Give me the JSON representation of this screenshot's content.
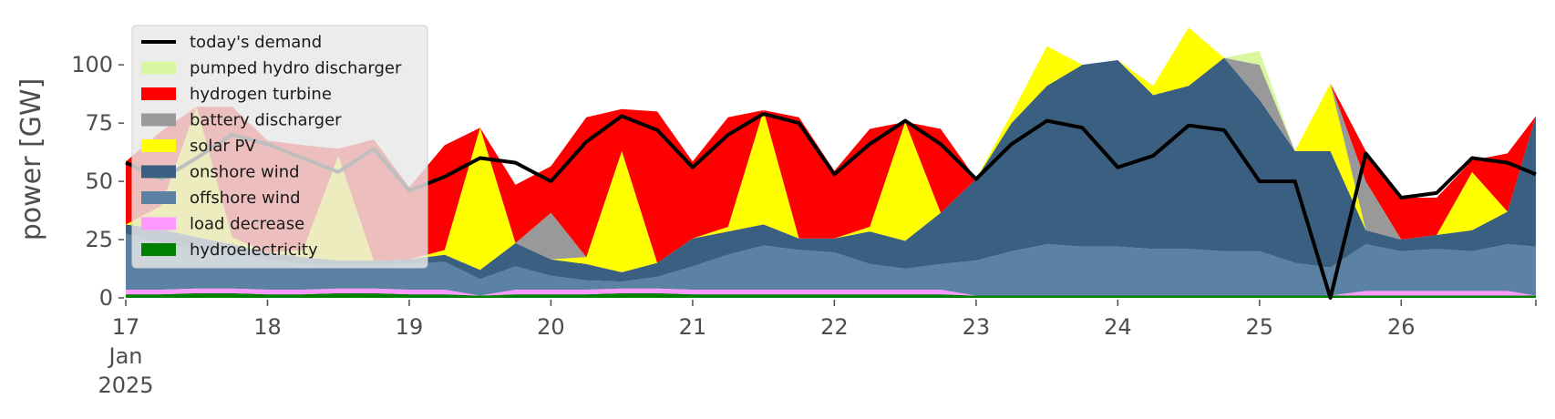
{
  "chart_data": {
    "type": "area",
    "stacked": true,
    "ylabel": "power [GW]",
    "xlabel": "",
    "ylim": [
      0,
      120
    ],
    "yticks": [
      0,
      25,
      50,
      75,
      100
    ],
    "xlim": [
      17,
      26.95
    ],
    "xticks": [
      {
        "value": 17,
        "label": "17",
        "sub": [
          "Jan",
          "2025"
        ]
      },
      {
        "value": 18,
        "label": "18"
      },
      {
        "value": 19,
        "label": "19"
      },
      {
        "value": 20,
        "label": "20"
      },
      {
        "value": 21,
        "label": "21"
      },
      {
        "value": 22,
        "label": "22"
      },
      {
        "value": 23,
        "label": "23"
      },
      {
        "value": 24,
        "label": "24"
      },
      {
        "value": 25,
        "label": "25"
      },
      {
        "value": 26,
        "label": "26"
      }
    ],
    "legend_position": "top-left",
    "grid": false,
    "legend": [
      {
        "name": "today's demand",
        "kind": "line",
        "color": "#000000"
      },
      {
        "name": "pumped hydro discharger",
        "kind": "patch",
        "color": "#d8f7a0"
      },
      {
        "name": "hydrogen turbine",
        "kind": "patch",
        "color": "#ff0000"
      },
      {
        "name": "battery discharger",
        "kind": "patch",
        "color": "#999999"
      },
      {
        "name": "solar PV",
        "kind": "patch",
        "color": "#ffff00"
      },
      {
        "name": "onshore wind",
        "kind": "patch",
        "color": "#3b5f80"
      },
      {
        "name": "offshore wind",
        "kind": "patch",
        "color": "#5b81a3"
      },
      {
        "name": "load decrease",
        "kind": "patch",
        "color": "#ff99ff"
      },
      {
        "name": "hydroelectricity",
        "kind": "patch",
        "color": "#008000"
      }
    ],
    "x": [
      17,
      17.25,
      17.5,
      17.75,
      18,
      18.25,
      18.5,
      18.75,
      19,
      19.25,
      19.5,
      19.75,
      20,
      20.25,
      20.5,
      20.75,
      21,
      21.25,
      21.5,
      21.75,
      22,
      22.25,
      22.5,
      22.75,
      23,
      23.25,
      23.5,
      23.75,
      24,
      24.25,
      24.5,
      24.75,
      25,
      25.25,
      25.5,
      25.75,
      26,
      26.25,
      26.5,
      26.75,
      26.95
    ],
    "series": [
      {
        "name": "hydroelectricity",
        "color": "#008000",
        "values": [
          1.5,
          1.5,
          2,
          2,
          1.5,
          1.5,
          2,
          2,
          1.5,
          1.5,
          1,
          1.5,
          1.5,
          1.5,
          2,
          2,
          1.5,
          1.5,
          1.5,
          1.5,
          1.5,
          1.5,
          1.5,
          1.5,
          1,
          1,
          1,
          1,
          1,
          1,
          1,
          1,
          1,
          1,
          1,
          1,
          1,
          1,
          1,
          1,
          1
        ]
      },
      {
        "name": "load decrease",
        "color": "#ff99ff",
        "values": [
          2,
          2,
          2,
          2,
          2,
          2,
          2,
          2,
          2,
          2,
          0,
          2,
          2,
          2,
          2,
          2,
          2,
          2,
          2,
          2,
          2,
          2,
          2,
          2,
          0,
          0,
          0,
          0,
          0,
          0,
          0,
          0,
          0,
          0,
          0,
          2,
          2,
          2,
          2,
          2,
          0
        ]
      },
      {
        "name": "offshore wind",
        "color": "#5b81a3",
        "values": [
          24,
          20,
          17,
          15,
          13,
          11,
          10,
          10,
          11,
          12,
          7,
          10,
          6,
          4,
          3,
          5,
          10,
          15,
          19,
          17,
          16,
          11,
          9,
          11,
          15,
          19,
          22,
          21,
          21,
          20,
          20,
          19,
          19,
          14,
          12,
          20,
          17,
          18,
          17,
          20,
          21
        ]
      },
      {
        "name": "onshore wind",
        "color": "#3b5f80",
        "values": [
          4,
          6,
          5,
          4,
          3,
          3,
          2,
          2,
          2,
          3,
          4,
          10,
          7,
          7,
          4,
          6,
          12,
          10,
          9,
          5,
          6,
          14,
          12,
          22,
          35,
          55,
          68,
          78,
          80,
          66,
          70,
          83,
          65,
          48,
          50,
          6,
          5,
          6,
          9,
          14,
          56
        ]
      },
      {
        "name": "solar PV",
        "color": "#ffff00",
        "values": [
          0,
          10,
          56,
          3,
          0,
          3,
          45,
          0,
          0,
          2,
          61,
          0,
          0,
          3,
          52,
          0,
          0,
          2,
          49,
          0,
          0,
          2,
          51,
          0,
          0,
          4,
          17,
          0,
          0,
          4,
          25,
          0,
          0,
          0,
          29,
          0,
          0,
          0,
          25,
          0,
          0
        ]
      },
      {
        "name": "battery discharger",
        "color": "#999999",
        "values": [
          0,
          0,
          0,
          0,
          0,
          0,
          0,
          0,
          0,
          0,
          0,
          0,
          20,
          0,
          0,
          0,
          0,
          0,
          0,
          0,
          0,
          0,
          0,
          0,
          0,
          0,
          0,
          0,
          0,
          0,
          0,
          0,
          15,
          0,
          0,
          21,
          0,
          0,
          0,
          0,
          0
        ]
      },
      {
        "name": "hydrogen turbine",
        "color": "#ff0000",
        "values": [
          27,
          32,
          0,
          56,
          48,
          45,
          3,
          52,
          31,
          45,
          0,
          25,
          20,
          60,
          18,
          65,
          33,
          47,
          0,
          52,
          29,
          42,
          0,
          36,
          0,
          0,
          0,
          0,
          0,
          0,
          0,
          0,
          0,
          0,
          0,
          13,
          18,
          16,
          5,
          25,
          0
        ]
      },
      {
        "name": "pumped hydro discharger",
        "color": "#d8f7a0",
        "values": [
          0,
          0,
          0,
          0,
          0,
          0,
          0,
          0,
          0,
          0,
          0,
          0,
          0,
          0,
          0,
          0,
          0,
          0,
          0,
          0,
          0,
          0,
          0,
          0,
          0,
          0,
          0,
          0,
          0,
          0,
          0,
          0,
          6,
          0,
          0,
          0,
          0,
          0,
          0,
          0,
          0
        ]
      }
    ],
    "demand": {
      "name": "today's demand",
      "color": "#000000",
      "values": [
        58,
        51,
        60,
        70,
        66,
        60,
        54,
        64,
        46,
        52,
        60,
        58,
        50,
        67,
        78,
        72,
        56,
        70,
        79,
        75,
        53,
        66,
        76,
        66,
        51,
        66,
        76,
        73,
        56,
        61,
        74,
        72,
        50,
        50,
        0,
        62,
        43,
        45,
        60,
        58,
        53
      ]
    }
  }
}
